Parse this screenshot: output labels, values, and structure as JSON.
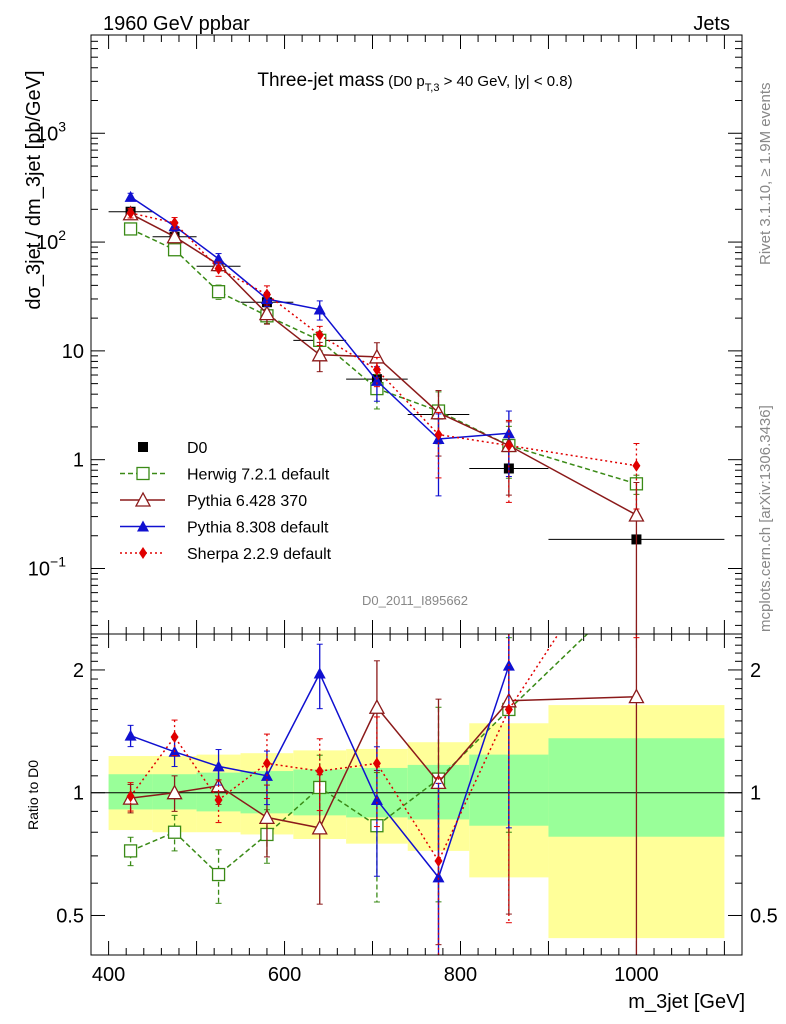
{
  "header": {
    "left": "1960 GeV ppbar",
    "right": "Jets"
  },
  "side": {
    "rivet": "Rivet 3.1.10, ≥ 1.9M events",
    "mcplots": "mcplots.cern.ch [arXiv:1306.3436]"
  },
  "chart_data": [
    {
      "type": "line",
      "title": "Three-jet mass",
      "subtitle_parts": [
        "(D0 p",
        "T,3",
        " > 40 GeV, |y| < 0.8)"
      ],
      "ylabel": "dσ_3jet / dm_3jet [pb/GeV]",
      "yscale": "log",
      "ylim": [
        0.025,
        8000
      ],
      "xlim": [
        380,
        1120
      ],
      "watermark": "D0_2011_I895662",
      "xticks": [
        400,
        600,
        800,
        1000
      ],
      "ytick_labels": [
        {
          "v": 1000,
          "base": "10",
          "exp": "3"
        },
        {
          "v": 100,
          "base": "10",
          "exp": "2"
        },
        {
          "v": 10,
          "base": "10",
          "exp": ""
        },
        {
          "v": 1,
          "base": "1",
          "exp": ""
        },
        {
          "v": 0.1,
          "base": "10",
          "exp": "−1"
        }
      ],
      "legend_position": "lower-left",
      "data_series": {
        "name": "D0",
        "color": "#000000",
        "x": [
          425,
          475,
          525,
          580,
          640,
          705,
          775,
          855,
          1000
        ],
        "xerr": [
          25,
          25,
          25,
          30,
          30,
          35,
          35,
          45,
          100
        ],
        "y": [
          190,
          112,
          60,
          28,
          12.5,
          5.5,
          2.6,
          0.83,
          0.185
        ]
      },
      "series": [
        {
          "name": "Herwig 7.2.1 default",
          "color": "#3a8a16",
          "marker": "open-square",
          "dash": "5,3",
          "x": [
            425,
            475,
            525,
            580,
            640,
            705,
            775,
            855,
            1000
          ],
          "y": [
            132,
            85,
            35,
            21,
            12.5,
            4.5,
            2.8,
            1.35,
            0.6
          ],
          "err": [
            0.1,
            0.1,
            0.15,
            0.15,
            0.2,
            0.35,
            0.5,
            0.5,
            0.2
          ]
        },
        {
          "name": "Pythia 6.428 370",
          "color": "#8b1a1a",
          "marker": "open-triangle",
          "dash": "",
          "x": [
            425,
            475,
            525,
            580,
            640,
            705,
            775,
            855,
            1000
          ],
          "y": [
            182,
            112,
            62,
            22,
            9.2,
            8.8,
            2.7,
            1.35,
            0.31
          ],
          "err": [
            0.1,
            0.1,
            0.1,
            0.2,
            0.3,
            0.35,
            0.6,
            0.65,
            0.99
          ]
        },
        {
          "name": "Pythia 8.308 default",
          "color": "#1010d0",
          "marker": "filled-triangle",
          "dash": "",
          "x": [
            425,
            475,
            525,
            580,
            640,
            705,
            775,
            855
          ],
          "y": [
            260,
            140,
            70,
            30,
            24,
            5.3,
            1.55,
            1.75
          ],
          "err": [
            0.08,
            0.1,
            0.12,
            0.15,
            0.2,
            0.35,
            0.7,
            0.6
          ]
        },
        {
          "name": "Sherpa 2.2.9 default",
          "color": "#e00000",
          "marker": "filled-diamond",
          "dash": "2,3",
          "x": [
            425,
            475,
            525,
            580,
            640,
            705,
            775,
            855,
            1000
          ],
          "y": [
            185,
            150,
            57,
            33,
            14,
            6.7,
            1.7,
            1.35,
            0.88
          ],
          "err": [
            0.1,
            0.12,
            0.15,
            0.2,
            0.2,
            0.3,
            0.6,
            0.7,
            0.6
          ]
        }
      ]
    },
    {
      "type": "line",
      "ylabel": "Ratio to D0",
      "xlabel": "m_3jet [GeV]",
      "yscale": "log",
      "ylim": [
        0.4,
        2.45
      ],
      "yticks": [
        0.5,
        1,
        2
      ],
      "ytick_labels": [
        "0.5",
        "1",
        "2"
      ],
      "uncertainty_bands": [
        {
          "x0": 400,
          "x1": 450,
          "inner": [
            0.91,
            1.11
          ],
          "outer": [
            0.81,
            1.23
          ]
        },
        {
          "x0": 450,
          "x1": 500,
          "inner": [
            0.91,
            1.11
          ],
          "outer": [
            0.8,
            1.23
          ]
        },
        {
          "x0": 500,
          "x1": 550,
          "inner": [
            0.9,
            1.12
          ],
          "outer": [
            0.8,
            1.24
          ]
        },
        {
          "x0": 550,
          "x1": 610,
          "inner": [
            0.89,
            1.13
          ],
          "outer": [
            0.79,
            1.25
          ]
        },
        {
          "x0": 610,
          "x1": 670,
          "inner": [
            0.88,
            1.14
          ],
          "outer": [
            0.77,
            1.27
          ]
        },
        {
          "x0": 670,
          "x1": 740,
          "inner": [
            0.87,
            1.15
          ],
          "outer": [
            0.75,
            1.28
          ]
        },
        {
          "x0": 740,
          "x1": 810,
          "inner": [
            0.86,
            1.17
          ],
          "outer": [
            0.72,
            1.33
          ]
        },
        {
          "x0": 810,
          "x1": 900,
          "inner": [
            0.83,
            1.24
          ],
          "outer": [
            0.62,
            1.48
          ]
        },
        {
          "x0": 900,
          "x1": 1100,
          "inner": [
            0.78,
            1.36
          ],
          "outer": [
            0.44,
            1.64
          ]
        }
      ],
      "series": [
        {
          "name": "Herwig 7.2.1 default",
          "x": [
            425,
            475,
            525,
            580,
            640,
            705,
            775,
            855,
            1000
          ],
          "y": [
            0.72,
            0.8,
            0.63,
            0.79,
            1.03,
            0.83,
            1.08,
            1.6,
            3.2
          ],
          "err": [
            0.08,
            0.1,
            0.15,
            0.15,
            0.2,
            0.35,
            0.5,
            0.5,
            0.2
          ]
        },
        {
          "name": "Pythia 6.428 370",
          "x": [
            425,
            475,
            525,
            580,
            640,
            705,
            775,
            855,
            1000
          ],
          "y": [
            0.97,
            1.0,
            1.04,
            0.87,
            0.82,
            1.62,
            1.06,
            1.68,
            1.72
          ],
          "err": [
            0.08,
            0.1,
            0.1,
            0.2,
            0.35,
            0.3,
            0.6,
            0.7,
            0.99
          ]
        },
        {
          "name": "Pythia 8.308 default",
          "x": [
            425,
            475,
            525,
            580,
            640,
            705,
            775,
            855
          ],
          "y": [
            1.38,
            1.26,
            1.16,
            1.1,
            1.96,
            0.96,
            0.62,
            2.05
          ],
          "err": [
            0.06,
            0.08,
            0.1,
            0.15,
            0.18,
            0.35,
            0.7,
            0.6
          ]
        },
        {
          "name": "Sherpa 2.2.9 default",
          "x": [
            425,
            475,
            525,
            580,
            640,
            705,
            775,
            855,
            1000
          ],
          "y": [
            0.98,
            1.37,
            0.96,
            1.18,
            1.13,
            1.18,
            0.68,
            1.6,
            4.8
          ],
          "err": [
            0.08,
            0.1,
            0.12,
            0.18,
            0.2,
            0.3,
            0.6,
            0.7,
            0.5
          ]
        }
      ]
    }
  ]
}
